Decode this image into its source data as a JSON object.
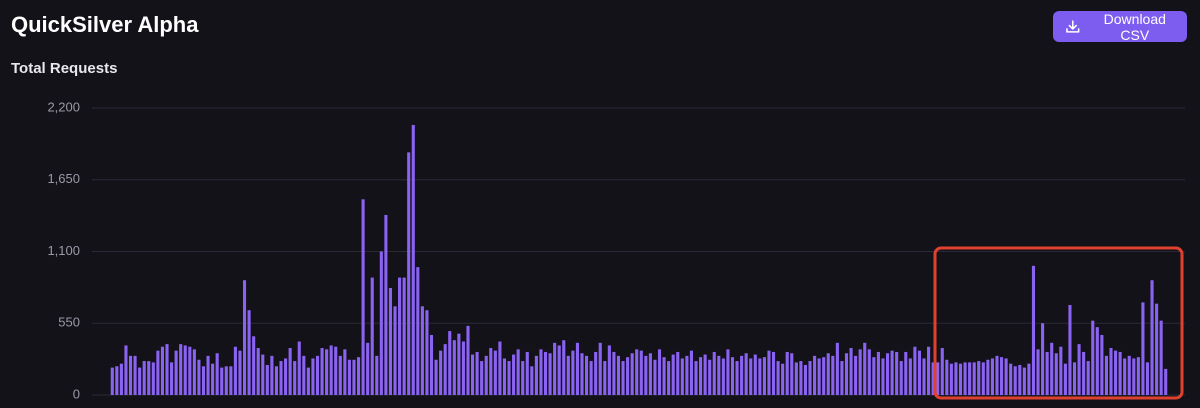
{
  "header": {
    "title": "QuickSilver Alpha",
    "download_button": "Download CSV"
  },
  "chart_data": {
    "type": "bar",
    "title": "Total Requests",
    "color": "#8b63f2",
    "ylim": [
      0,
      2200
    ],
    "yticks": [
      0,
      550,
      {
        "value": 1100,
        "label": "1,100"
      },
      {
        "value": 1650,
        "label": "1,650"
      },
      {
        "value": 2200,
        "label": "2,200"
      }
    ],
    "grid": true,
    "values": [
      210,
      220,
      240,
      380,
      300,
      300,
      210,
      260,
      260,
      250,
      340,
      370,
      390,
      250,
      340,
      390,
      380,
      370,
      350,
      270,
      220,
      300,
      240,
      320,
      210,
      220,
      220,
      370,
      340,
      880,
      650,
      450,
      360,
      310,
      230,
      300,
      220,
      260,
      280,
      360,
      260,
      410,
      300,
      210,
      280,
      300,
      360,
      350,
      380,
      370,
      300,
      350,
      270,
      270,
      290,
      1500,
      400,
      900,
      300,
      1100,
      1380,
      820,
      680,
      900,
      900,
      1860,
      2070,
      980,
      680,
      650,
      460,
      270,
      340,
      390,
      490,
      420,
      470,
      410,
      530,
      310,
      330,
      260,
      300,
      360,
      340,
      410,
      280,
      260,
      310,
      350,
      260,
      330,
      220,
      300,
      350,
      330,
      320,
      400,
      380,
      420,
      300,
      340,
      400,
      320,
      300,
      260,
      330,
      400,
      260,
      380,
      330,
      300,
      260,
      290,
      320,
      350,
      340,
      300,
      320,
      270,
      350,
      290,
      260,
      310,
      330,
      280,
      300,
      340,
      260,
      290,
      310,
      270,
      330,
      300,
      280,
      350,
      290,
      260,
      300,
      320,
      280,
      310,
      280,
      290,
      340,
      330,
      260,
      240,
      330,
      320,
      250,
      260,
      230,
      260,
      300,
      280,
      290,
      320,
      300,
      400,
      260,
      320,
      360,
      300,
      350,
      400,
      350,
      290,
      330,
      280,
      320,
      340,
      330,
      260,
      330,
      280,
      370,
      340,
      280,
      370,
      250,
      250,
      360,
      270,
      240,
      250,
      240,
      250,
      250,
      250,
      260,
      250,
      270,
      280,
      300,
      290,
      280,
      240,
      220,
      230,
      210,
      240,
      990,
      350,
      550,
      330,
      400,
      320,
      370,
      240,
      690,
      250,
      390,
      330,
      260,
      570,
      520,
      460,
      300,
      360,
      340,
      330,
      280,
      300,
      280,
      290,
      710,
      250,
      880,
      700,
      570,
      200
    ]
  }
}
